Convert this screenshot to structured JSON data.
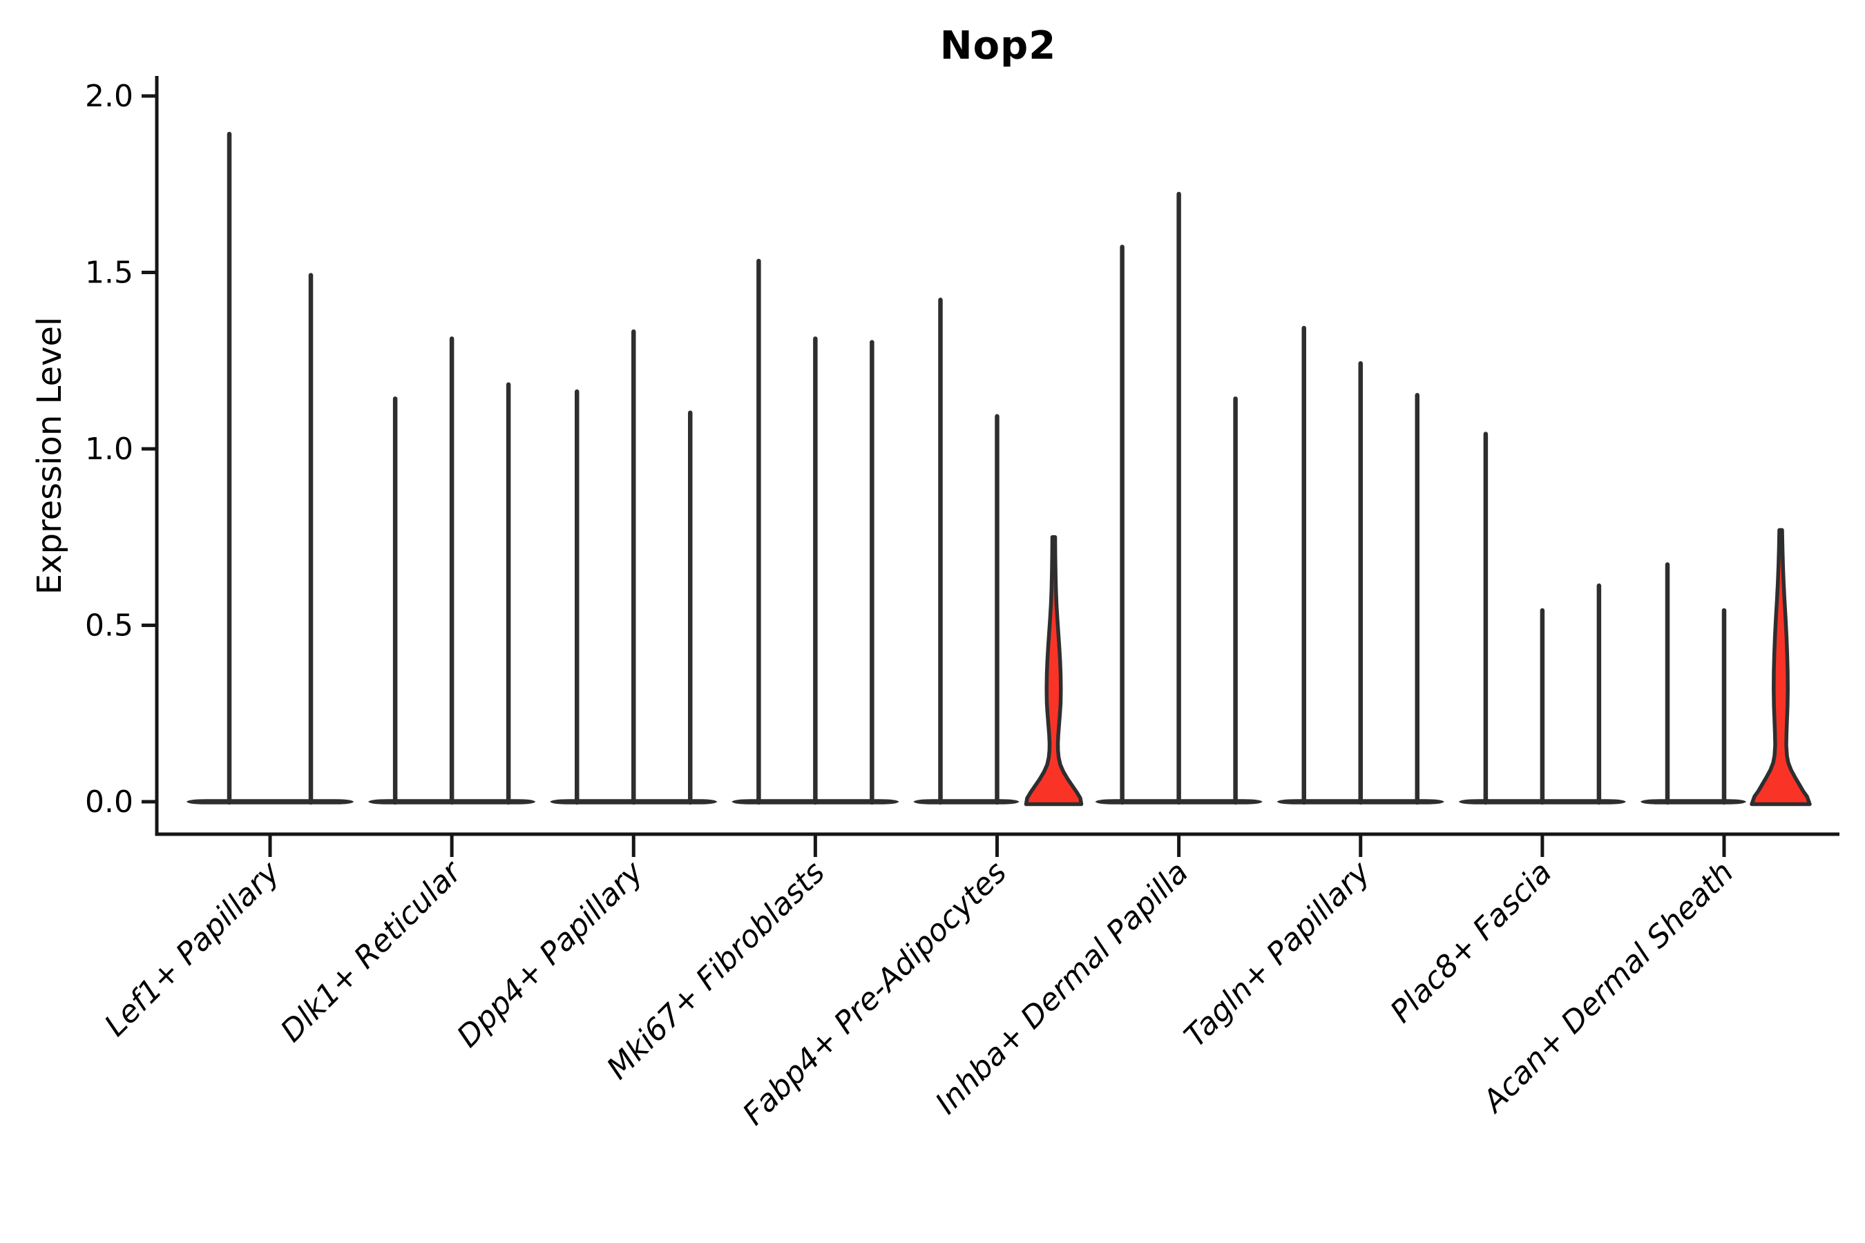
{
  "figure": {
    "title": "Nop2",
    "y_axis_label": "Expression Level"
  },
  "chart_data": {
    "type": "violin",
    "title": "Nop2",
    "xlabel": "",
    "ylabel": "Expression Level",
    "ylim": [
      -0.09,
      2.06
    ],
    "ytick_labels": [
      "0.0",
      "0.5",
      "1.0",
      "1.5",
      "2.0"
    ],
    "ytick_values": [
      0.0,
      0.5,
      1.0,
      1.5,
      2.0
    ],
    "grid": false,
    "legend_position": "none",
    "xtick_label_style": {
      "italic": true,
      "rotation_deg": 45,
      "align": "right"
    },
    "categories": [
      "Lef1+ Papillary",
      "Dlk1+ Reticular",
      "Dpp4+ Papillary",
      "Mki67+ Fibroblasts",
      "Fabp4+ Pre-Adipocytes",
      "Inhba+ Dermal Papilla",
      "Tagln+ Papillary",
      "Plac8+ Fascia",
      "Acan+ Dermal Sheath"
    ],
    "series": [
      {
        "category": "Lef1+ Papillary",
        "violins": [
          {
            "max": 1.9,
            "highlight": false
          },
          {
            "max": 1.5,
            "highlight": false
          }
        ]
      },
      {
        "category": "Dlk1+ Reticular",
        "violins": [
          {
            "max": 1.15,
            "highlight": false
          },
          {
            "max": 1.32,
            "highlight": false
          },
          {
            "max": 1.19,
            "highlight": false
          }
        ]
      },
      {
        "category": "Dpp4+ Papillary",
        "violins": [
          {
            "max": 1.17,
            "highlight": false
          },
          {
            "max": 1.34,
            "highlight": false
          },
          {
            "max": 1.11,
            "highlight": false
          }
        ]
      },
      {
        "category": "Mki67+ Fibroblasts",
        "violins": [
          {
            "max": 1.54,
            "highlight": false
          },
          {
            "max": 1.32,
            "highlight": false
          },
          {
            "max": 1.31,
            "highlight": false
          }
        ]
      },
      {
        "category": "Fabp4+ Pre-Adipocytes",
        "violins": [
          {
            "max": 1.43,
            "highlight": false
          },
          {
            "max": 1.1,
            "highlight": false
          },
          {
            "max": 0.75,
            "highlight": true,
            "profile": [
              [
                0.75,
                2
              ],
              [
                0.7,
                2.2
              ],
              [
                0.65,
                2.6
              ],
              [
                0.6,
                3.2
              ],
              [
                0.56,
                4.0
              ],
              [
                0.52,
                5.2
              ],
              [
                0.48,
                6.6
              ],
              [
                0.44,
                8.0
              ],
              [
                0.4,
                9.2
              ],
              [
                0.36,
                10.0
              ],
              [
                0.32,
                10.3
              ],
              [
                0.28,
                10.0
              ],
              [
                0.25,
                9.0
              ],
              [
                0.22,
                7.8
              ],
              [
                0.19,
                6.6
              ],
              [
                0.165,
                6.0
              ],
              [
                0.145,
                6.2
              ],
              [
                0.125,
                7.2
              ],
              [
                0.105,
                9.5
              ],
              [
                0.085,
                14.0
              ],
              [
                0.065,
                20.0
              ],
              [
                0.045,
                27.0
              ],
              [
                0.025,
                34.0
              ],
              [
                0.01,
                38.5
              ],
              [
                0.0,
                40.0
              ]
            ]
          }
        ]
      },
      {
        "category": "Inhba+ Dermal Papilla",
        "violins": [
          {
            "max": 1.58,
            "highlight": false
          },
          {
            "max": 1.73,
            "highlight": false
          },
          {
            "max": 1.15,
            "highlight": false
          }
        ]
      },
      {
        "category": "Tagln+ Papillary",
        "violins": [
          {
            "max": 1.35,
            "highlight": false
          },
          {
            "max": 1.25,
            "highlight": false
          },
          {
            "max": 1.16,
            "highlight": false
          }
        ]
      },
      {
        "category": "Plac8+ Fascia",
        "violins": [
          {
            "max": 1.05,
            "highlight": false
          },
          {
            "max": 0.55,
            "highlight": false
          },
          {
            "max": 0.62,
            "highlight": false
          }
        ]
      },
      {
        "category": "Acan+ Dermal Sheath",
        "violins": [
          {
            "max": 0.68,
            "highlight": false
          },
          {
            "max": 0.55,
            "highlight": false
          },
          {
            "max": 0.77,
            "highlight": true,
            "profile": [
              [
                0.77,
                2
              ],
              [
                0.72,
                2.5
              ],
              [
                0.67,
                3.2
              ],
              [
                0.62,
                4.2
              ],
              [
                0.57,
                5.5
              ],
              [
                0.52,
                7.0
              ],
              [
                0.47,
                8.3
              ],
              [
                0.42,
                9.3
              ],
              [
                0.37,
                10.0
              ],
              [
                0.32,
                10.2
              ],
              [
                0.27,
                9.8
              ],
              [
                0.23,
                9.0
              ],
              [
                0.19,
                8.3
              ],
              [
                0.16,
                8.0
              ],
              [
                0.13,
                9.0
              ],
              [
                0.11,
                11.0
              ],
              [
                0.09,
                15.0
              ],
              [
                0.07,
                20.5
              ],
              [
                0.05,
                26.5
              ],
              [
                0.03,
                32.5
              ],
              [
                0.015,
                38.0
              ],
              [
                0.0,
                42.0
              ]
            ]
          }
        ]
      }
    ],
    "colors": {
      "highlight_fill": "#FA3327",
      "violin_outline": "#2E2E2E",
      "axis": "#161616",
      "text": "#000000",
      "background": "#FFFFFF"
    }
  }
}
